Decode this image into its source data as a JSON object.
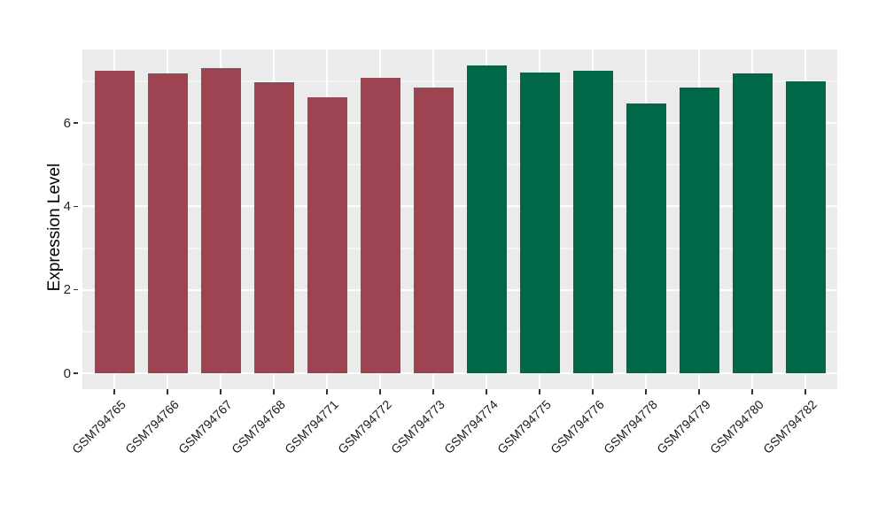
{
  "figure": {
    "background": "#FFFFFF",
    "panel_background": "#EBEBEB",
    "grid_color": "#FFFFFF",
    "tick_color": "#333333",
    "axis_text_color": "#262626",
    "axis_title_color": "#000000"
  },
  "chart_data": {
    "type": "bar",
    "title": "",
    "xlabel": "",
    "ylabel": "Expression Level",
    "categories": [
      "GSM794765",
      "GSM794766",
      "GSM794767",
      "GSM794768",
      "GSM794771",
      "GSM794772",
      "GSM794773",
      "GSM794774",
      "GSM794775",
      "GSM794776",
      "GSM794778",
      "GSM794779",
      "GSM794780",
      "GSM794782"
    ],
    "values": [
      7.26,
      7.19,
      7.32,
      6.98,
      6.61,
      7.08,
      6.85,
      7.38,
      7.2,
      7.26,
      6.46,
      6.85,
      7.19,
      7.0
    ],
    "bar_colors": [
      "#9C4451",
      "#9C4451",
      "#9C4451",
      "#9C4451",
      "#9C4451",
      "#9C4451",
      "#9C4451",
      "#006849",
      "#006849",
      "#006849",
      "#006849",
      "#006849",
      "#006849",
      "#006849"
    ],
    "group_colors": {
      "left_group": "#9C4451",
      "right_group": "#006849"
    },
    "yticks": [
      0,
      2,
      4,
      6
    ],
    "minor_yticks": [
      1,
      3,
      5,
      7
    ],
    "ylim": [
      -0.38,
      7.76
    ],
    "grid": true,
    "legend": "none",
    "bar_width_fraction": 0.75,
    "category_expand": 0.6,
    "x_label_angle": -45
  }
}
